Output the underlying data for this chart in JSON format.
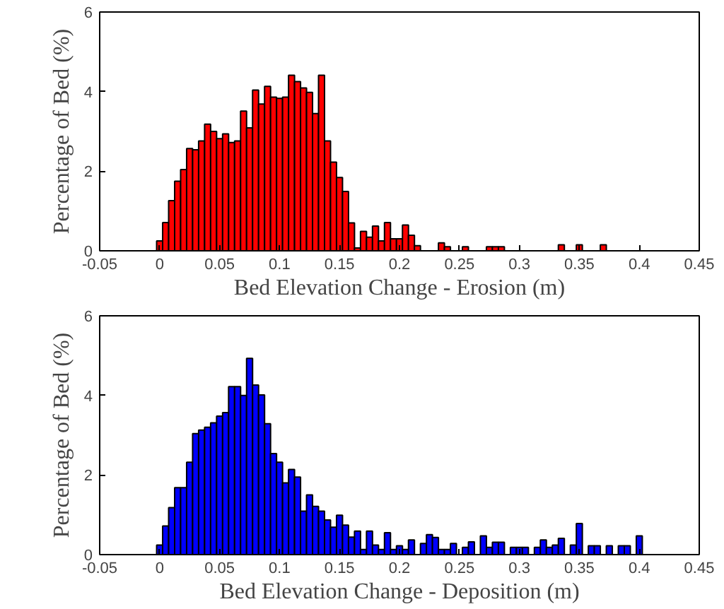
{
  "chart_data": [
    {
      "type": "histogram",
      "xlabel": "Bed Elevation Change - Erosion (m)",
      "ylabel": "Percentage of Bed (%)",
      "color": "#ff0000",
      "bins": [
        -0.0025,
        0.0025,
        0.0075,
        0.0125,
        0.0175,
        0.0225,
        0.0275,
        0.0325,
        0.0375,
        0.0425,
        0.0475,
        0.0525,
        0.0575,
        0.0625,
        0.0675,
        0.0725,
        0.0775,
        0.0825,
        0.0875,
        0.0925,
        0.0975,
        0.1025,
        0.1075,
        0.1125,
        0.1175,
        0.1225,
        0.1275,
        0.1325,
        0.1375,
        0.1425,
        0.1475,
        0.1525,
        0.1575,
        0.1625,
        0.1675,
        0.1725,
        0.1775,
        0.1825,
        0.1875,
        0.1925,
        0.1975,
        0.2025,
        0.2075,
        0.2125,
        0.2175,
        0.2225,
        0.2275,
        0.2325,
        0.2375,
        0.2425,
        0.2475,
        0.2525,
        0.2575,
        0.2625,
        0.2675,
        0.2725,
        0.2775,
        0.2825,
        0.2875,
        0.2925,
        0.2975,
        0.3025,
        0.3075,
        0.3125,
        0.3175,
        0.3225,
        0.3275,
        0.3325,
        0.3375,
        0.3425,
        0.3475,
        0.3525,
        0.3575,
        0.3625,
        0.3675,
        0.3725,
        0.3775,
        0.3825,
        0.3875,
        0.3925,
        0.3975,
        0.4025
      ],
      "values": [
        0.25,
        0.71,
        1.26,
        1.75,
        2.04,
        2.57,
        2.54,
        2.76,
        3.18,
        3.0,
        2.82,
        2.94,
        2.72,
        2.76,
        3.51,
        3.09,
        4.04,
        3.69,
        4.13,
        3.86,
        3.83,
        3.86,
        4.41,
        4.25,
        4.09,
        3.98,
        3.45,
        4.41,
        2.76,
        2.23,
        1.84,
        1.49,
        0.7,
        0.07,
        0.49,
        0.34,
        0.62,
        0.25,
        0.71,
        0.3,
        0.3,
        0.65,
        0.39,
        0.13,
        0,
        0,
        0,
        0.2,
        0.1,
        0,
        0,
        0.1,
        0,
        0,
        0,
        0.1,
        0.1,
        0.1,
        0,
        0,
        0,
        0,
        0,
        0,
        0,
        0,
        0,
        0.15,
        0,
        0,
        0.15,
        0,
        0,
        0,
        0.15,
        0,
        0,
        0,
        0,
        0,
        0
      ],
      "xlim": [
        -0.05,
        0.45
      ],
      "xticks": [
        -0.05,
        0,
        0.05,
        0.1,
        0.15,
        0.2,
        0.25,
        0.3,
        0.35,
        0.4,
        0.45
      ],
      "ylim": [
        0,
        6
      ],
      "yticks": [
        0,
        2,
        4,
        6
      ],
      "grid": false
    },
    {
      "type": "histogram",
      "xlabel": "Bed Elevation Change - Deposition (m)",
      "ylabel": "Percentage of Bed (%)",
      "color": "#0000ff",
      "bins": [
        -0.0025,
        0.0025,
        0.0075,
        0.0125,
        0.0175,
        0.0225,
        0.0275,
        0.0325,
        0.0375,
        0.0425,
        0.0475,
        0.0525,
        0.0575,
        0.0625,
        0.0675,
        0.0725,
        0.0775,
        0.0825,
        0.0875,
        0.0925,
        0.0975,
        0.1025,
        0.1075,
        0.1125,
        0.1175,
        0.1225,
        0.1275,
        0.1325,
        0.1375,
        0.1425,
        0.1475,
        0.1525,
        0.1575,
        0.1625,
        0.1675,
        0.1725,
        0.1775,
        0.1825,
        0.1875,
        0.1925,
        0.1975,
        0.2025,
        0.2075,
        0.2125,
        0.2175,
        0.2225,
        0.2275,
        0.2325,
        0.2375,
        0.2425,
        0.2475,
        0.2525,
        0.2575,
        0.2625,
        0.2675,
        0.2725,
        0.2775,
        0.2825,
        0.2875,
        0.2925,
        0.2975,
        0.3025,
        0.3075,
        0.3125,
        0.3175,
        0.3225,
        0.3275,
        0.3325,
        0.3375,
        0.3425,
        0.3475,
        0.3525,
        0.3575,
        0.3625,
        0.3675,
        0.3725,
        0.3775,
        0.3825,
        0.3875,
        0.3925,
        0.3975,
        0.4025
      ],
      "values": [
        0.24,
        0.72,
        1.18,
        1.68,
        1.68,
        2.32,
        3.04,
        3.13,
        3.2,
        3.31,
        3.48,
        3.57,
        4.22,
        4.22,
        4.0,
        4.93,
        4.26,
        4.01,
        3.29,
        2.54,
        2.32,
        1.8,
        2.14,
        1.95,
        1.09,
        1.5,
        1.21,
        1.09,
        0.87,
        0.69,
        0.99,
        0.74,
        0.44,
        0.59,
        0.13,
        0.59,
        0.24,
        0.13,
        0.55,
        0.13,
        0.22,
        0.13,
        0.37,
        0,
        0.28,
        0.5,
        0.43,
        0.13,
        0.13,
        0.28,
        0,
        0.18,
        0.32,
        0,
        0.47,
        0.18,
        0.31,
        0.31,
        0,
        0.18,
        0.18,
        0.18,
        0,
        0.18,
        0.37,
        0.18,
        0.24,
        0.41,
        0,
        0.24,
        0.78,
        0,
        0.22,
        0.22,
        0,
        0.22,
        0,
        0.22,
        0.22,
        0,
        0.47
      ],
      "xlim": [
        -0.05,
        0.45
      ],
      "xticks": [
        -0.05,
        0,
        0.05,
        0.1,
        0.15,
        0.2,
        0.25,
        0.3,
        0.35,
        0.4,
        0.45
      ],
      "ylim": [
        0,
        6
      ],
      "yticks": [
        0,
        2,
        4,
        6
      ],
      "grid": false
    }
  ]
}
